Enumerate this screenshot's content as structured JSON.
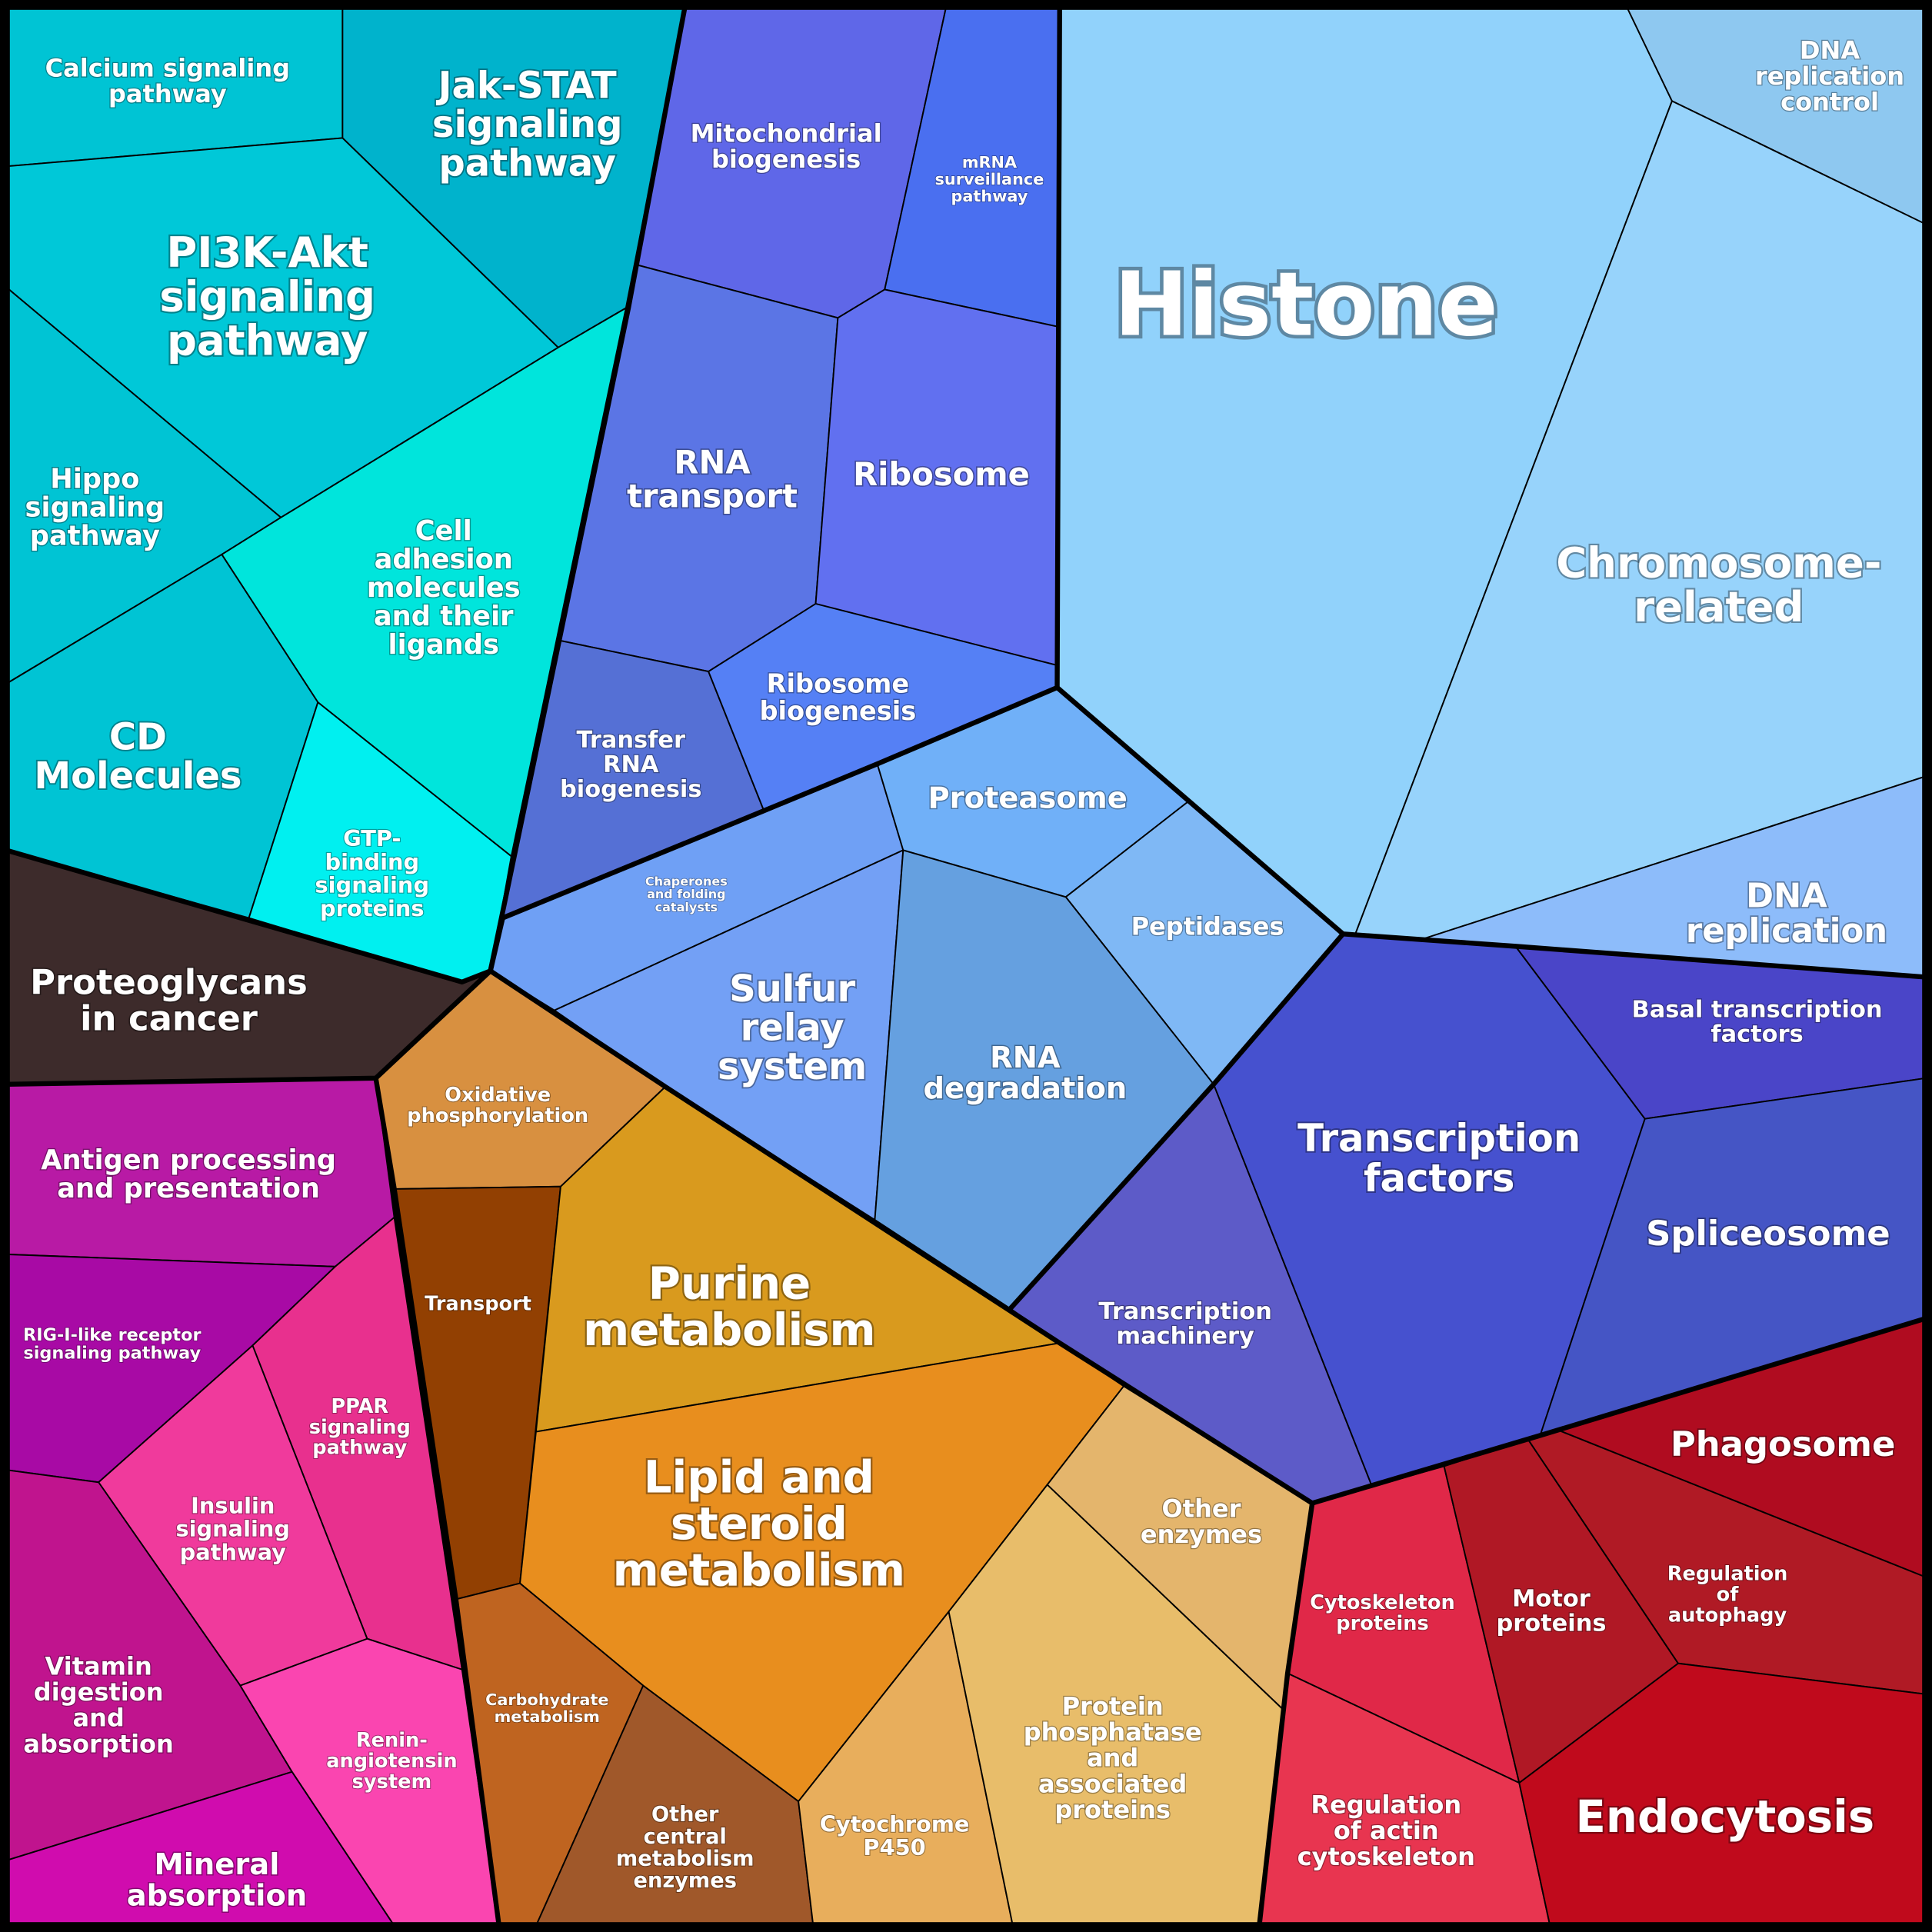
{
  "cells": [
    {
      "label": [
        "Calcium signaling",
        "pathway"
      ],
      "color": "#00c4d4"
    },
    {
      "label": [
        "Jak-STAT",
        "signaling",
        "pathway"
      ],
      "color": "#00b3cc"
    },
    {
      "label": [
        "PI3K-Akt",
        "signaling",
        "pathway"
      ],
      "color": "#00c8d8"
    },
    {
      "label": [
        "Hippo",
        "signaling",
        "pathway"
      ],
      "color": "#00c4d4"
    },
    {
      "label": [
        "Cell",
        "adhesion",
        "molecules",
        "and their",
        "ligands"
      ],
      "color": "#00e5dc"
    },
    {
      "label": [
        "CD",
        "Molecules"
      ],
      "color": "#00c4d4"
    },
    {
      "label": [
        "GTP-",
        "binding",
        "signaling",
        "proteins"
      ],
      "color": "#00f0f0"
    },
    {
      "label": [
        "Proteoglycans",
        "in cancer"
      ],
      "color": "#3d2b2b"
    },
    {
      "label": [
        "Mitochondrial",
        "biogenesis"
      ],
      "color": "#5f67e8"
    },
    {
      "label": [
        "mRNA",
        "surveillance",
        "pathway"
      ],
      "color": "#4a6ff0"
    },
    {
      "label": [
        "RNA",
        "transport"
      ],
      "color": "#5b75e5"
    },
    {
      "label": [
        "Ribosome"
      ],
      "color": "#6170f0"
    },
    {
      "label": [
        "Transfer",
        "RNA",
        "biogenesis"
      ],
      "color": "#5570d5"
    },
    {
      "label": [
        "Ribosome",
        "biogenesis"
      ],
      "color": "#5580f5"
    },
    {
      "label": [
        "Chaperones",
        "and folding",
        "catalysts"
      ],
      "color": "#6fa0f5"
    },
    {
      "label": [
        "Proteasome"
      ],
      "color": "#70b0f8"
    },
    {
      "label": [
        "Peptidases"
      ],
      "color": "#7fb8f5"
    },
    {
      "label": [
        "Sulfur",
        "relay",
        "system"
      ],
      "color": "#73a0f5"
    },
    {
      "label": [
        "RNA",
        "degradation"
      ],
      "color": "#65a0e0"
    },
    {
      "label": [
        "Histone"
      ],
      "color": "#91d2fb"
    },
    {
      "label": [
        "DNA",
        "replication",
        "control"
      ],
      "color": "#8ec8f0"
    },
    {
      "label": [
        "Chromosome-",
        "related"
      ],
      "color": "#97d3fb"
    },
    {
      "label": [
        "DNA",
        "replication"
      ],
      "color": "#8dbcfa"
    },
    {
      "label": [
        "Transcription",
        "machinery"
      ],
      "color": "#5d5bc8"
    },
    {
      "label": [
        "Transcription",
        "factors"
      ],
      "color": "#4651cf"
    },
    {
      "label": [
        "Basal transcription",
        "factors"
      ],
      "color": "#4a45c8"
    },
    {
      "label": [
        "Spliceosome"
      ],
      "color": "#4555c5"
    },
    {
      "label": [
        "Cytoskeleton",
        "proteins"
      ],
      "color": "#e02848"
    },
    {
      "label": [
        "Motor",
        "proteins"
      ],
      "color": "#b01825"
    },
    {
      "label": [
        "Regulation",
        "of",
        "autophagy"
      ],
      "color": "#b01a25"
    },
    {
      "label": [
        "Phagosome"
      ],
      "color": "#b00c20"
    },
    {
      "label": [
        "Regulation",
        "of actin",
        "cytoskeleton"
      ],
      "color": "#e83550"
    },
    {
      "label": [
        "Endocytosis"
      ],
      "color": "#c00a1c"
    },
    {
      "label": [
        "Oxidative",
        "phosphorylation"
      ],
      "color": "#d89040"
    },
    {
      "label": [
        "Transport"
      ],
      "color": "#924002"
    },
    {
      "label": [
        "Purine",
        "metabolism"
      ],
      "color": "#d99a1e"
    },
    {
      "label": [
        "Lipid and",
        "steroid",
        "metabolism"
      ],
      "color": "#e88e1e"
    },
    {
      "label": [
        "Carbohydrate",
        "metabolism"
      ],
      "color": "#bf6420"
    },
    {
      "label": [
        "Other",
        "central",
        "metabolism",
        "enzymes"
      ],
      "color": "#a0582a"
    },
    {
      "label": [
        "Cytochrome",
        "P450"
      ],
      "color": "#e8ae5c"
    },
    {
      "label": [
        "Protein",
        "phosphatase",
        "and",
        "associated",
        "proteins"
      ],
      "color": "#e8bd6a"
    },
    {
      "label": [
        "Other",
        "enzymes"
      ],
      "color": "#e4b56c"
    },
    {
      "label": [
        "Antigen processing",
        "and presentation"
      ],
      "color": "#b81aa5"
    },
    {
      "label": [
        "RIG-I-like receptor",
        "signaling pathway"
      ],
      "color": "#a80aa5"
    },
    {
      "label": [
        "PPAR",
        "signaling",
        "pathway"
      ],
      "color": "#e8308e"
    },
    {
      "label": [
        "Insulin",
        "signaling",
        "pathway"
      ],
      "color": "#f03a9c"
    },
    {
      "label": [
        "Vitamin",
        "digestion",
        "and",
        "absorption"
      ],
      "color": "#c0148e"
    },
    {
      "label": [
        "Renin-",
        "angiotensin",
        "system"
      ],
      "color": "#fa45b0"
    },
    {
      "label": [
        "Mineral",
        "absorption"
      ],
      "color": "#d00cae"
    }
  ]
}
